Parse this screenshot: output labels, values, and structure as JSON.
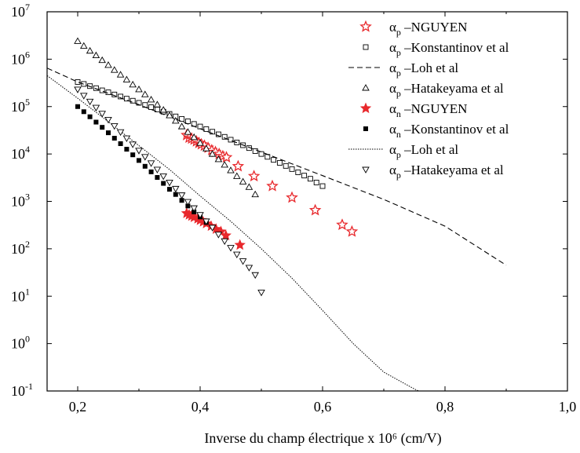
{
  "chart_data": {
    "type": "scatter",
    "xlabel": "Inverse du champ électrique  x 10⁶ (cm/V)",
    "y_scale": "log",
    "xlim": [
      0.15,
      1.0
    ],
    "ylim_exponents": [
      -1,
      7
    ],
    "x_ticks": [
      "0,2",
      "0,4",
      "0,6",
      "0,8",
      "1,0"
    ],
    "x_tick_values": [
      0.2,
      0.4,
      0.6,
      0.8,
      1.0
    ],
    "y_ticks": [
      {
        "base": "10",
        "exp": "-1"
      },
      {
        "base": "10",
        "exp": "0"
      },
      {
        "base": "10",
        "exp": "1"
      },
      {
        "base": "10",
        "exp": "2"
      },
      {
        "base": "10",
        "exp": "3"
      },
      {
        "base": "10",
        "exp": "4"
      },
      {
        "base": "10",
        "exp": "5"
      },
      {
        "base": "10",
        "exp": "6"
      },
      {
        "base": "10",
        "exp": "7"
      }
    ],
    "legend_position": "top-right",
    "series": [
      {
        "sym": "α",
        "sub": "p",
        "label": "–NGUYEN",
        "marker": "star-open",
        "color": "#e8282c",
        "x": [
          0.378,
          0.382,
          0.386,
          0.39,
          0.394,
          0.398,
          0.402,
          0.407,
          0.413,
          0.419,
          0.425,
          0.431,
          0.437,
          0.443,
          0.462,
          0.488,
          0.518,
          0.55,
          0.588,
          0.632,
          0.648
        ],
        "y": [
          25000,
          22000,
          21000,
          20000,
          18500,
          17000,
          16000,
          15000,
          13500,
          12000,
          11000,
          10000,
          9000,
          8500,
          5500,
          3400,
          2100,
          1200,
          650,
          320,
          230
        ]
      },
      {
        "sym": "α",
        "sub": "p",
        "label": "–Konstantinov et al",
        "marker": "square-open",
        "color": "#000000",
        "x": [
          0.2,
          0.21,
          0.22,
          0.23,
          0.24,
          0.25,
          0.26,
          0.27,
          0.28,
          0.29,
          0.3,
          0.31,
          0.32,
          0.33,
          0.34,
          0.35,
          0.36,
          0.37,
          0.38,
          0.39,
          0.4,
          0.41,
          0.42,
          0.43,
          0.44,
          0.45,
          0.46,
          0.47,
          0.48,
          0.49,
          0.5,
          0.51,
          0.52,
          0.53,
          0.54,
          0.55,
          0.56,
          0.57,
          0.58,
          0.59,
          0.6
        ],
        "y": [
          330000,
          300000,
          270000,
          245000,
          220000,
          200000,
          180000,
          163000,
          147000,
          133000,
          120000,
          108000,
          97000,
          87000,
          78000,
          70000,
          62000,
          55000,
          49000,
          43000,
          38000,
          33500,
          29500,
          26000,
          23000,
          20000,
          17500,
          15300,
          13300,
          11500,
          10000,
          8700,
          7500,
          6500,
          5600,
          4800,
          4100,
          3500,
          3000,
          2500,
          2100
        ]
      },
      {
        "sym": "α",
        "sub": "p",
        "label": "–Loh et al",
        "marker": "line-dashed",
        "color": "#000000",
        "x": [
          0.15,
          0.2,
          0.3,
          0.4,
          0.5,
          0.6,
          0.7,
          0.8,
          0.9
        ],
        "y": [
          650000,
          330000,
          110000,
          34000,
          11000,
          3500,
          1100,
          300,
          45
        ]
      },
      {
        "sym": "α",
        "sub": "p",
        "label": "–Hatakeyama et al",
        "marker": "triangle-up-open",
        "color": "#000000",
        "x": [
          0.2,
          0.21,
          0.22,
          0.23,
          0.24,
          0.25,
          0.26,
          0.27,
          0.28,
          0.29,
          0.3,
          0.31,
          0.32,
          0.33,
          0.34,
          0.35,
          0.36,
          0.37,
          0.38,
          0.39,
          0.4,
          0.41,
          0.42,
          0.43,
          0.44,
          0.45,
          0.46,
          0.47,
          0.48,
          0.49
        ],
        "y": [
          2400000,
          1900000,
          1500000,
          1200000,
          950000,
          750000,
          590000,
          470000,
          370000,
          290000,
          230000,
          180000,
          140000,
          110000,
          85000,
          65000,
          50000,
          38000,
          29000,
          22500,
          17000,
          13000,
          10000,
          7700,
          5900,
          4500,
          3400,
          2600,
          2000,
          1400
        ]
      },
      {
        "sym": "α",
        "sub": "n",
        "label": "–NGUYEN",
        "marker": "star-filled",
        "color": "#e8282c",
        "x": [
          0.378,
          0.382,
          0.386,
          0.39,
          0.396,
          0.4,
          0.405,
          0.41,
          0.418,
          0.426,
          0.434,
          0.442,
          0.465
        ],
        "y": [
          560,
          520,
          490,
          460,
          430,
          400,
          370,
          340,
          300,
          260,
          230,
          190,
          120
        ]
      },
      {
        "sym": "α",
        "sub": "n",
        "label": "–Konstantinov et al",
        "marker": "square-filled",
        "color": "#000000",
        "x": [
          0.2,
          0.21,
          0.22,
          0.23,
          0.24,
          0.25,
          0.26,
          0.27,
          0.28,
          0.29,
          0.3,
          0.31,
          0.32,
          0.33,
          0.34,
          0.35,
          0.36,
          0.37,
          0.38,
          0.39,
          0.4,
          0.41
        ],
        "y": [
          100000,
          78000,
          61000,
          47000,
          36500,
          28000,
          21500,
          16500,
          12600,
          9600,
          7300,
          5500,
          4200,
          3200,
          2400,
          1800,
          1400,
          1050,
          800,
          600,
          470,
          360
        ]
      },
      {
        "sym": "α",
        "sub": "p",
        "label": "–Loh et al",
        "marker": "line-dotted",
        "color": "#000000",
        "x": [
          0.15,
          0.2,
          0.25,
          0.3,
          0.35,
          0.4,
          0.45,
          0.5,
          0.55,
          0.6,
          0.65,
          0.7,
          0.75,
          0.757
        ],
        "y": [
          450000,
          150000,
          48000,
          15000,
          4700,
          1300,
          380,
          100,
          24,
          5,
          1,
          0.25,
          0.11,
          0.1
        ]
      },
      {
        "sym": "α",
        "sub": "p",
        "label": "–Hatakeyama et al",
        "marker": "triangle-down-open",
        "color": "#000000",
        "x": [
          0.2,
          0.21,
          0.22,
          0.23,
          0.24,
          0.25,
          0.26,
          0.27,
          0.28,
          0.29,
          0.3,
          0.31,
          0.32,
          0.33,
          0.34,
          0.35,
          0.36,
          0.37,
          0.38,
          0.39,
          0.4,
          0.41,
          0.42,
          0.43,
          0.44,
          0.45,
          0.46,
          0.47,
          0.48,
          0.49,
          0.5
        ],
        "y": [
          230000,
          170000,
          128000,
          95000,
          71000,
          53000,
          39000,
          29000,
          21500,
          16000,
          11800,
          8700,
          6400,
          4700,
          3400,
          2500,
          1850,
          1350,
          980,
          720,
          520,
          380,
          280,
          200,
          145,
          105,
          76,
          55,
          40,
          28,
          12
        ]
      }
    ]
  }
}
